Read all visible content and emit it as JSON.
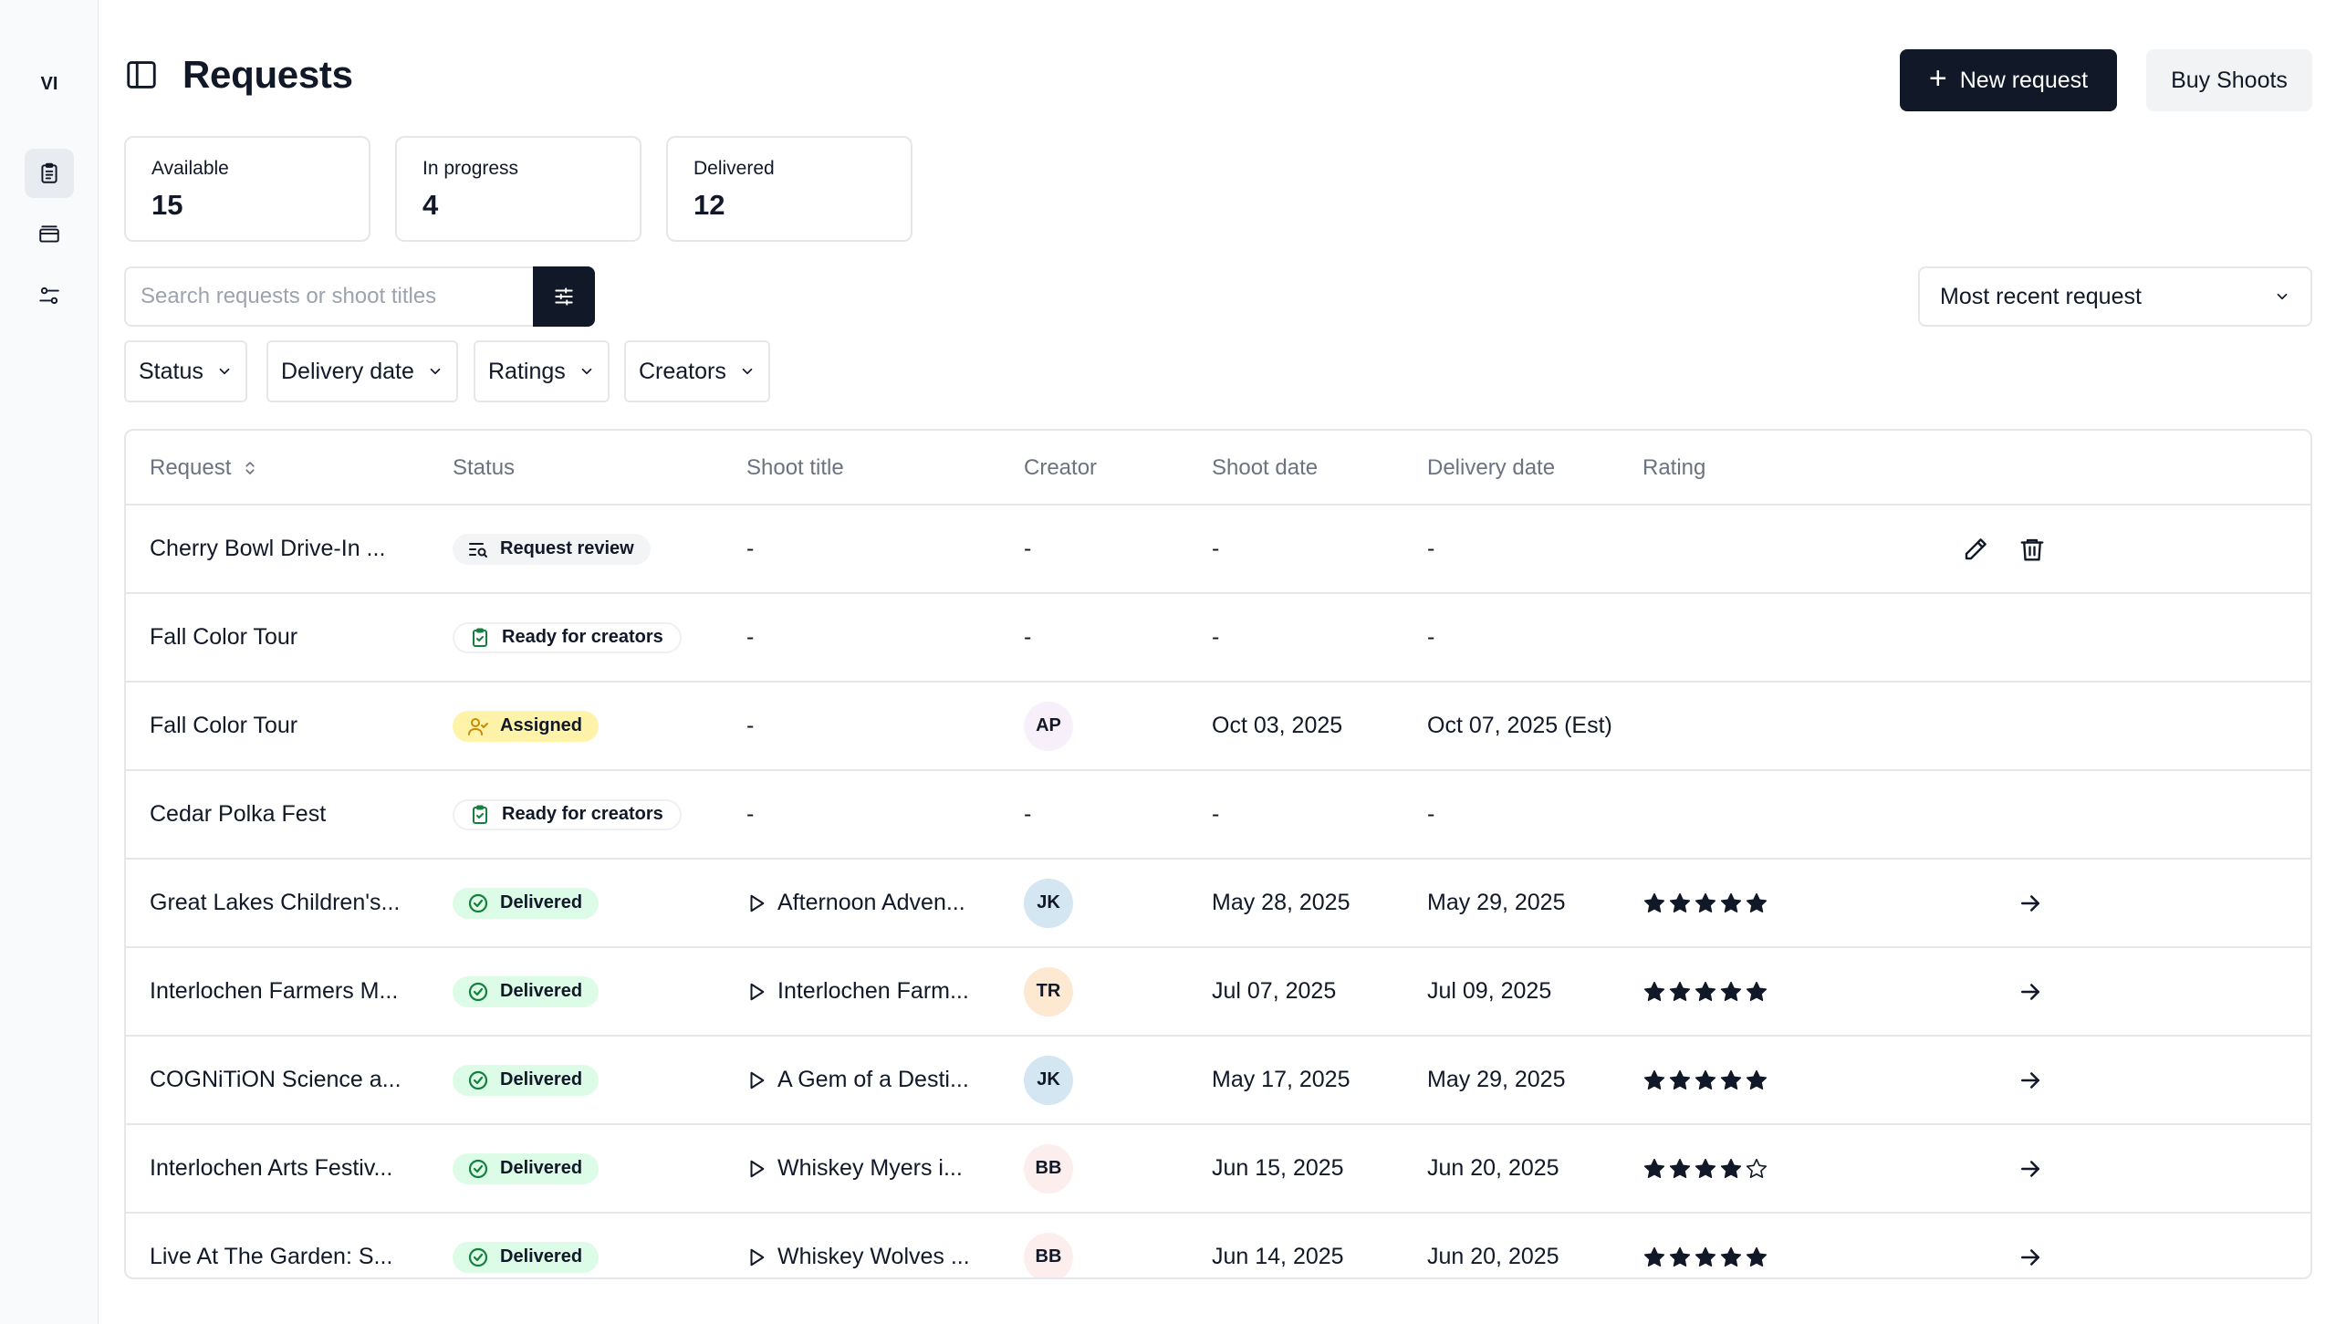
{
  "sidebar": {
    "user_initials": "VI",
    "items": [
      {
        "icon": "clipboard-list-icon",
        "active": true
      },
      {
        "icon": "gallery-icon",
        "active": false
      },
      {
        "icon": "settings-sliders-icon",
        "active": false
      }
    ]
  },
  "header": {
    "title": "Requests",
    "new_request_label": "New request",
    "buy_shoots_label": "Buy Shoots"
  },
  "stats": [
    {
      "label": "Available",
      "value": "15"
    },
    {
      "label": "In progress",
      "value": "4"
    },
    {
      "label": "Delivered",
      "value": "12"
    }
  ],
  "search": {
    "placeholder": "Search requests or shoot titles",
    "value": ""
  },
  "sort": {
    "selected": "Most recent request"
  },
  "filters": [
    "Status",
    "Delivery date",
    "Ratings",
    "Creators"
  ],
  "table": {
    "columns": [
      "Request",
      "Status",
      "Shoot title",
      "Creator",
      "Shoot date",
      "Delivery date",
      "Rating"
    ],
    "rows": [
      {
        "request": "Cherry Bowl Drive-In ...",
        "status": "Request review",
        "status_type": "review",
        "shoot_title": "-",
        "creator": "-",
        "creator_color": "",
        "shoot_date": "-",
        "delivery_date": "-",
        "rating": null,
        "action": "edit-delete"
      },
      {
        "request": "Fall Color Tour",
        "status": "Ready for creators",
        "status_type": "ready",
        "shoot_title": "-",
        "creator": "-",
        "creator_color": "",
        "shoot_date": "-",
        "delivery_date": "-",
        "rating": null,
        "action": "none"
      },
      {
        "request": "Fall Color Tour",
        "status": "Assigned",
        "status_type": "assigned",
        "shoot_title": "-",
        "creator": "AP",
        "creator_color": "#f7f0fa",
        "shoot_date": "Oct 03, 2025",
        "delivery_date": "Oct 07, 2025 (Est)",
        "rating": null,
        "action": "none"
      },
      {
        "request": "Cedar Polka Fest",
        "status": "Ready for creators",
        "status_type": "ready",
        "shoot_title": "-",
        "creator": "-",
        "creator_color": "",
        "shoot_date": "-",
        "delivery_date": "-",
        "rating": null,
        "action": "none"
      },
      {
        "request": "Great Lakes Children's...",
        "status": "Delivered",
        "status_type": "delivered",
        "shoot_title": "Afternoon Adven...",
        "creator": "JK",
        "creator_color": "#d3e6f2",
        "shoot_date": "May 28, 2025",
        "delivery_date": "May 29, 2025",
        "rating": 5,
        "action": "arrow"
      },
      {
        "request": "Interlochen Farmers M...",
        "status": "Delivered",
        "status_type": "delivered",
        "shoot_title": "Interlochen Farm...",
        "creator": "TR",
        "creator_color": "#fde9d2",
        "shoot_date": "Jul 07, 2025",
        "delivery_date": "Jul 09, 2025",
        "rating": 5,
        "action": "arrow"
      },
      {
        "request": "COGNiTiON Science a...",
        "status": "Delivered",
        "status_type": "delivered",
        "shoot_title": "A Gem of a Desti...",
        "creator": "JK",
        "creator_color": "#d3e6f2",
        "shoot_date": "May 17, 2025",
        "delivery_date": "May 29, 2025",
        "rating": 5,
        "action": "arrow"
      },
      {
        "request": "Interlochen Arts Festiv...",
        "status": "Delivered",
        "status_type": "delivered",
        "shoot_title": "Whiskey Myers i...",
        "creator": "BB",
        "creator_color": "#fdeeee",
        "shoot_date": "Jun 15, 2025",
        "delivery_date": "Jun 20, 2025",
        "rating": 4,
        "action": "arrow"
      },
      {
        "request": "Live At The Garden: S...",
        "status": "Delivered",
        "status_type": "delivered",
        "shoot_title": "Whiskey Wolves ...",
        "creator": "BB",
        "creator_color": "#fdeeee",
        "shoot_date": "Jun 14, 2025",
        "delivery_date": "Jun 20, 2025",
        "rating": 5,
        "action": "arrow"
      }
    ]
  }
}
